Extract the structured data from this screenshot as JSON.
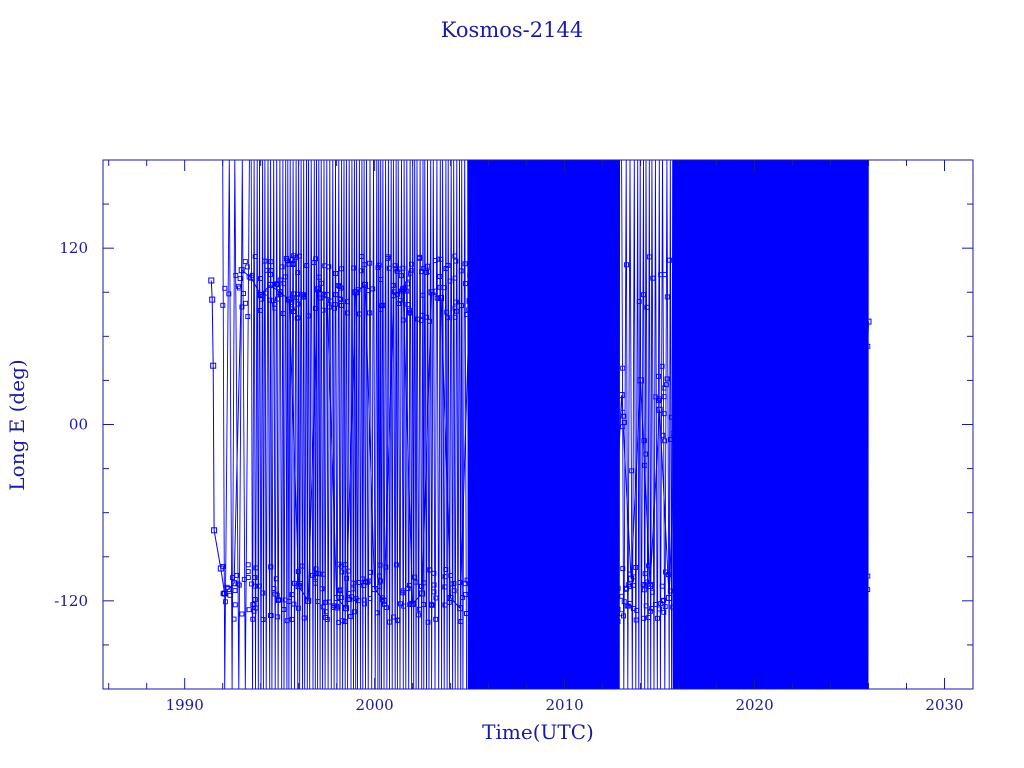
{
  "chart_data": {
    "type": "line",
    "title": "Kosmos-2144",
    "xlabel": "Time(UTC)",
    "ylabel": "Long E (deg)",
    "xlim": [
      1985.7,
      2031.5
    ],
    "ylim": [
      -180,
      180
    ],
    "x_ticks": [
      1990,
      2000,
      2010,
      2020,
      2030
    ],
    "x_tick_labels": [
      "1990",
      "2000",
      "2010",
      "2020",
      "2030"
    ],
    "y_ticks": [
      -120,
      0,
      120
    ],
    "y_tick_labels": [
      "-120",
      "00",
      "120"
    ],
    "grid": false,
    "series_color": "#0000ff",
    "frame_color": "#1a1aa0",
    "series": [
      {
        "marker": "square",
        "x": [
          1991.4,
          1991.45,
          1991.5,
          1991.55,
          1991.9,
          1992.1,
          1992.3,
          1992.6,
          1993.0,
          1993.5,
          1994.0,
          1994.5,
          1995.0,
          1995.5,
          1996.0,
          1996.5,
          1997.0,
          1997.5,
          1998.0,
          1998.5,
          1999.0,
          1999.5,
          2000.0,
          2000.5,
          2001.0,
          2001.5,
          2002.0,
          2002.5,
          2003.0,
          2003.5,
          2004.0,
          2004.5,
          2005.0,
          2005.5,
          2006.0,
          2006.5,
          2007.0,
          2007.5,
          2008.0,
          2008.5,
          2009.0,
          2009.5,
          2010.0,
          2010.5,
          2011.0,
          2011.5,
          2012.0,
          2012.5,
          2013.0,
          2013.5,
          2014.0,
          2014.5,
          2015.0,
          2015.5,
          2016.0,
          2016.5,
          2017.0,
          2017.5,
          2018.0,
          2018.5,
          2019.0,
          2019.5,
          2020.0,
          2020.5,
          2021.0,
          2021.5,
          2022.0,
          2022.5,
          2023.0,
          2023.5,
          2024.0,
          2024.5,
          2025.0,
          2025.5,
          2026.0
        ],
        "y": [
          98,
          85,
          40,
          -72,
          -98,
          -115,
          -112,
          -108,
          105,
          100,
          88,
          95,
          90,
          85,
          -110,
          -120,
          92,
          88,
          -118,
          -125,
          90,
          95,
          -112,
          -120,
          88,
          92,
          -122,
          -115,
          90,
          86,
          -118,
          -125,
          84,
          -118,
          88,
          -122,
          90,
          -115,
          86,
          -120,
          92,
          -118,
          88,
          -125,
          86,
          -120,
          90,
          -116,
          20,
          -105,
          30,
          -110,
          10,
          -118,
          60,
          -130,
          70,
          -120,
          50,
          -110,
          60,
          -118,
          40,
          -120,
          55,
          -112,
          30,
          -125,
          10,
          -110,
          0,
          -120,
          20,
          -118,
          70
        ]
      }
    ]
  }
}
